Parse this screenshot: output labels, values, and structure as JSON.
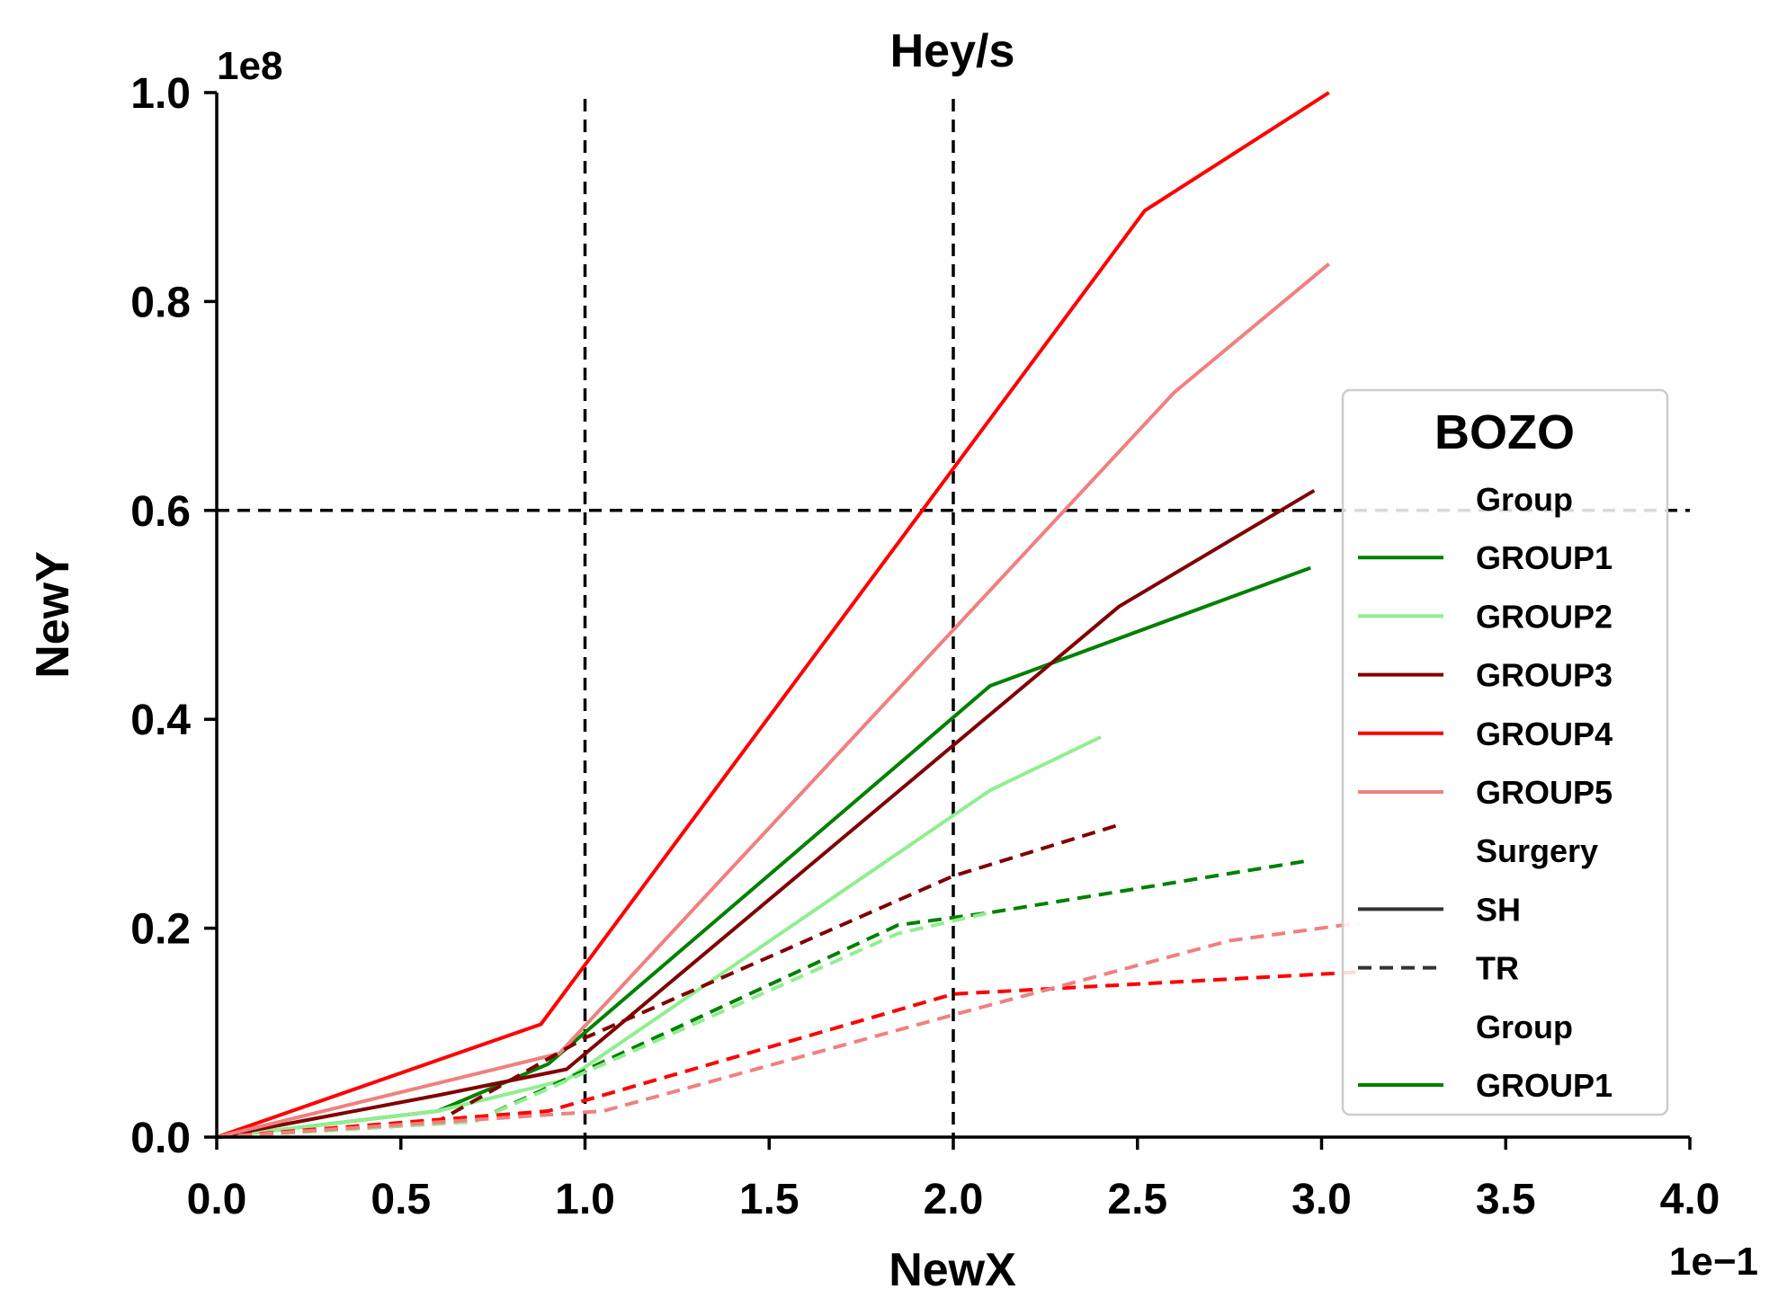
{
  "chart_data": {
    "type": "line",
    "title": "Hey/s",
    "xlabel": "NewX",
    "ylabel": "NewY",
    "x_offset_label": "1e−1",
    "y_offset_label": "1e8",
    "xlim": [
      0.0,
      0.4
    ],
    "ylim": [
      0,
      100000000
    ],
    "x_ticks": [
      0.0,
      0.05,
      0.1,
      0.15,
      0.2,
      0.25,
      0.3,
      0.35,
      0.4
    ],
    "x_tick_labels": [
      "0.0",
      "0.5",
      "1.0",
      "1.5",
      "2.0",
      "2.5",
      "3.0",
      "3.5",
      "4.0"
    ],
    "y_ticks": [
      0,
      20000000,
      40000000,
      60000000,
      80000000,
      100000000
    ],
    "y_tick_labels": [
      "0.0",
      "0.2",
      "0.4",
      "0.6",
      "0.8",
      "1.0"
    ],
    "grid": false,
    "legend_position": "center-right",
    "reference_lines": [
      {
        "orientation": "vertical",
        "value": 0.1,
        "style": "dashed",
        "color": "#000000"
      },
      {
        "orientation": "vertical",
        "value": 0.2,
        "style": "dashed",
        "color": "#000000"
      },
      {
        "orientation": "horizontal",
        "value": 60000000,
        "style": "dashed",
        "color": "#000000"
      }
    ],
    "legend": {
      "title": "BOZO",
      "entries": [
        {
          "kind": "header",
          "label": "Group"
        },
        {
          "kind": "line",
          "label": "GROUP1",
          "color": "#008000",
          "style": "solid"
        },
        {
          "kind": "line",
          "label": "GROUP2",
          "color": "#90ee90",
          "style": "solid"
        },
        {
          "kind": "line",
          "label": "GROUP3",
          "color": "#800000",
          "style": "solid"
        },
        {
          "kind": "line",
          "label": "GROUP4",
          "color": "#ff0000",
          "style": "solid"
        },
        {
          "kind": "line",
          "label": "GROUP5",
          "color": "#f08080",
          "style": "solid"
        },
        {
          "kind": "header",
          "label": "Surgery"
        },
        {
          "kind": "line",
          "label": "SH",
          "color": "#333333",
          "style": "solid"
        },
        {
          "kind": "line",
          "label": "TR",
          "color": "#333333",
          "style": "dashed"
        },
        {
          "kind": "header",
          "label": "Group"
        },
        {
          "kind": "line",
          "label": "GROUP1",
          "color": "#008000",
          "style": "solid"
        }
      ]
    },
    "series": [
      {
        "group": "GROUP1",
        "surgery": "SH",
        "color": "#008000",
        "style": "solid",
        "x": [
          0.0,
          0.06,
          0.09,
          0.21,
          0.297
        ],
        "y": [
          0,
          2500000,
          7000000,
          43200000,
          54500000
        ]
      },
      {
        "group": "GROUP2",
        "surgery": "SH",
        "color": "#90ee90",
        "style": "solid",
        "x": [
          0.0,
          0.06,
          0.095,
          0.21,
          0.24
        ],
        "y": [
          0,
          2500000,
          5500000,
          33200000,
          38300000
        ]
      },
      {
        "group": "GROUP3",
        "surgery": "SH",
        "color": "#800000",
        "style": "solid",
        "x": [
          0.0,
          0.06,
          0.095,
          0.245,
          0.298
        ],
        "y": [
          0,
          4000000,
          6500000,
          50800000,
          61900000
        ]
      },
      {
        "group": "GROUP4",
        "surgery": "SH",
        "color": "#ff0000",
        "style": "solid",
        "x": [
          0.0,
          0.088,
          0.252,
          0.302
        ],
        "y": [
          0,
          10800000,
          88700000,
          100000000
        ]
      },
      {
        "group": "GROUP5",
        "surgery": "SH",
        "color": "#f08080",
        "style": "solid",
        "x": [
          0.0,
          0.093,
          0.26,
          0.302
        ],
        "y": [
          0,
          8000000,
          71300000,
          83600000
        ]
      },
      {
        "group": "GROUP1",
        "surgery": "TR",
        "color": "#008000",
        "style": "dashed",
        "x": [
          0.0,
          0.07,
          0.185,
          0.21,
          0.297
        ],
        "y": [
          0,
          1500000,
          20300000,
          21500000,
          26500000
        ]
      },
      {
        "group": "GROUP2",
        "surgery": "TR",
        "color": "#90ee90",
        "style": "dashed",
        "x": [
          0.0,
          0.07,
          0.185,
          0.21
        ],
        "y": [
          0,
          1500000,
          19500000,
          21500000
        ]
      },
      {
        "group": "GROUP3",
        "surgery": "TR",
        "color": "#800000",
        "style": "dashed",
        "x": [
          0.0,
          0.06,
          0.1,
          0.2,
          0.245
        ],
        "y": [
          0,
          1500000,
          9500000,
          25000000,
          29900000
        ]
      },
      {
        "group": "GROUP4",
        "surgery": "TR",
        "color": "#ff0000",
        "style": "dashed",
        "x": [
          0.0,
          0.09,
          0.2,
          0.31
        ],
        "y": [
          0,
          2500000,
          13700000,
          15800000
        ]
      },
      {
        "group": "GROUP5",
        "surgery": "TR",
        "color": "#f08080",
        "style": "dashed",
        "x": [
          0.0,
          0.105,
          0.2,
          0.275,
          0.31
        ],
        "y": [
          0,
          2500000,
          11700000,
          18800000,
          20500000
        ]
      }
    ]
  }
}
